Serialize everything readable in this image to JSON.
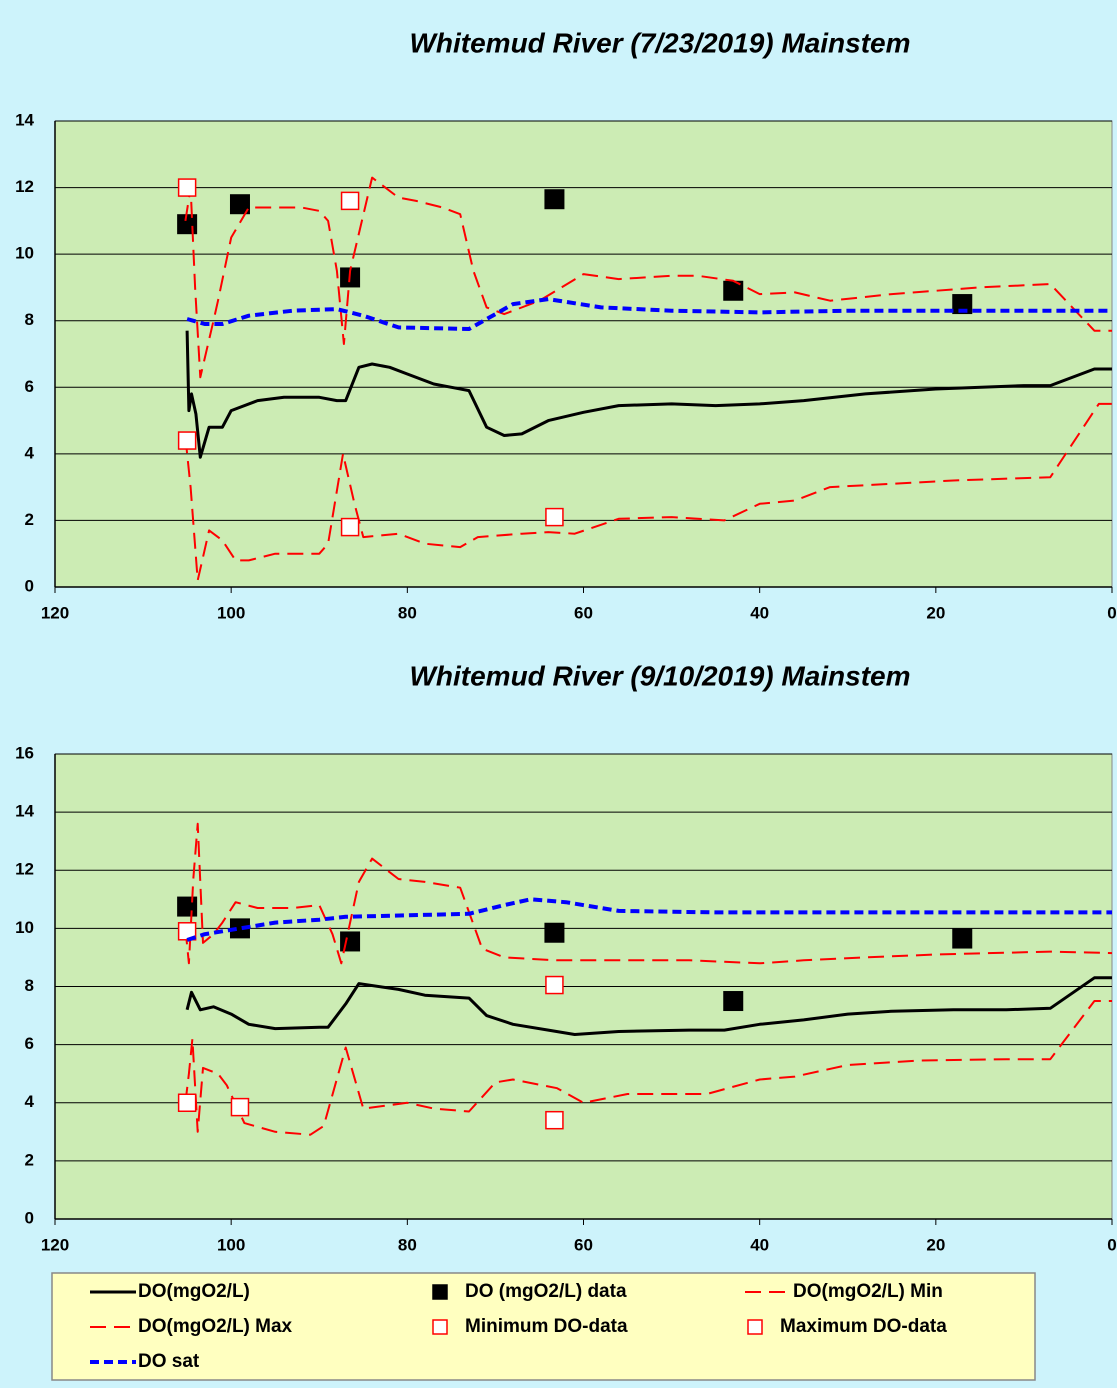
{
  "chart_data": [
    {
      "type": "line",
      "title": "Whitemud River (7/23/2019) Mainstem",
      "xlim": [
        120,
        0
      ],
      "xticks": [
        120,
        100,
        80,
        60,
        40,
        20,
        0
      ],
      "ylim": [
        0,
        14
      ],
      "yticks": [
        0,
        2,
        4,
        6,
        8,
        10,
        12,
        14
      ],
      "grid": true,
      "series": [
        {
          "color": "#000000",
          "style": "solid",
          "x": [
            105,
            104.8,
            104.5,
            104,
            103.5,
            102.5,
            101,
            100,
            97,
            94,
            90,
            88,
            87,
            85.5,
            84,
            82,
            80,
            77,
            75,
            73,
            71,
            69,
            67,
            64,
            60,
            56,
            50,
            45,
            40,
            35,
            28,
            20,
            10,
            7,
            2,
            0
          ],
          "values": [
            7.7,
            5.3,
            5.8,
            5.2,
            3.9,
            4.8,
            4.8,
            5.3,
            5.6,
            5.7,
            5.7,
            5.6,
            5.6,
            6.6,
            6.7,
            6.6,
            6.4,
            6.1,
            6.0,
            5.9,
            4.8,
            4.55,
            4.6,
            5.0,
            5.25,
            5.45,
            5.5,
            5.45,
            5.5,
            5.6,
            5.8,
            5.95,
            6.05,
            6.05,
            6.55,
            6.55
          ]
        },
        {
          "color": "#000000",
          "style": "square-filled",
          "x": [
            105,
            99,
            86.5,
            63.3,
            43,
            17
          ],
          "values": [
            10.9,
            11.5,
            9.3,
            11.65,
            8.9,
            8.5
          ]
        },
        {
          "color": "#ff0000",
          "style": "dashed",
          "x": [
            105.2,
            104.6,
            103.8,
            102.5,
            101,
            99.5,
            98,
            95,
            90,
            89,
            87.3,
            86,
            85,
            81,
            78,
            74,
            72,
            67,
            64,
            61,
            56,
            50,
            44,
            40,
            36,
            32,
            25,
            18,
            7,
            1.5,
            0
          ],
          "values": [
            4.5,
            3.0,
            0.2,
            1.7,
            1.4,
            0.8,
            0.8,
            1.0,
            1.0,
            1.3,
            4.0,
            2.5,
            1.5,
            1.6,
            1.3,
            1.2,
            1.5,
            1.6,
            1.65,
            1.6,
            2.05,
            2.1,
            2.0,
            2.5,
            2.6,
            3.0,
            3.1,
            3.2,
            3.3,
            5.5,
            5.5
          ]
        },
        {
          "color": "#ff0000",
          "style": "dashed",
          "x": [
            105.2,
            104.6,
            104.1,
            103.5,
            102,
            101.5,
            100,
            98,
            92,
            90,
            89,
            88,
            87.2,
            86.5,
            84,
            81,
            79,
            76,
            74,
            72.5,
            71,
            69,
            65,
            60,
            56,
            50,
            47,
            43,
            40,
            36,
            32,
            25,
            15,
            7,
            2,
            0
          ],
          "values": [
            11,
            12,
            9,
            6.3,
            8,
            8.6,
            10.5,
            11.4,
            11.4,
            11.3,
            11.0,
            9.5,
            7.3,
            9.5,
            12.3,
            11.7,
            11.6,
            11.4,
            11.2,
            9.5,
            8.4,
            8.2,
            8.6,
            9.4,
            9.25,
            9.35,
            9.35,
            9.2,
            8.8,
            8.85,
            8.6,
            8.8,
            9.0,
            9.1,
            7.7,
            7.7
          ]
        },
        {
          "color": "#ff0000",
          "style": "square-open",
          "x": [
            105,
            86.5,
            63.3
          ],
          "values": [
            4.4,
            1.8,
            2.1
          ]
        },
        {
          "color": "#ff0000",
          "style": "square-open",
          "x": [
            105,
            86.5
          ],
          "values": [
            12.0,
            11.6
          ]
        },
        {
          "color": "#0000ff",
          "style": "dotted",
          "x": [
            105,
            103,
            101,
            98,
            93,
            88,
            85,
            81,
            73,
            70,
            68,
            64,
            58,
            50,
            40,
            30,
            0
          ],
          "values": [
            8.05,
            7.9,
            7.9,
            8.15,
            8.3,
            8.35,
            8.15,
            7.8,
            7.75,
            8.2,
            8.5,
            8.65,
            8.4,
            8.3,
            8.25,
            8.3,
            8.3
          ]
        }
      ]
    },
    {
      "type": "line",
      "title": "Whitemud River (9/10/2019) Mainstem",
      "xlim": [
        120,
        0
      ],
      "xticks": [
        120,
        100,
        80,
        60,
        40,
        20,
        0
      ],
      "ylim": [
        0,
        16
      ],
      "yticks": [
        0,
        2,
        4,
        6,
        8,
        10,
        12,
        14,
        16
      ],
      "grid": true,
      "series": [
        {
          "name": "DO(mgO2/L)",
          "color": "#000000",
          "style": "solid",
          "x": [
            105,
            104.5,
            103.5,
            102,
            100,
            98,
            95,
            90,
            89,
            87,
            85.5,
            81,
            78,
            73,
            71,
            68,
            64,
            61,
            56,
            48,
            44,
            40,
            35,
            30,
            25,
            18,
            12,
            7,
            2,
            0
          ],
          "values": [
            7.2,
            7.8,
            7.2,
            7.3,
            7.05,
            6.7,
            6.55,
            6.6,
            6.6,
            7.4,
            8.1,
            7.9,
            7.7,
            7.6,
            7.0,
            6.7,
            6.5,
            6.35,
            6.45,
            6.5,
            6.5,
            6.7,
            6.85,
            7.05,
            7.15,
            7.2,
            7.2,
            7.25,
            8.3,
            8.3
          ]
        },
        {
          "name": "DO (mgO2/L) data",
          "color": "#000000",
          "style": "square-filled",
          "x": [
            105,
            99,
            86.5,
            63.3,
            43,
            17
          ],
          "values": [
            10.75,
            10.0,
            9.55,
            9.85,
            7.5,
            9.65
          ]
        },
        {
          "name": "DO(mgO2/L) Min",
          "color": "#ff0000",
          "style": "dashed",
          "x": [
            105.2,
            104.8,
            104.4,
            103.8,
            103.2,
            101.5,
            100.5,
            98.5,
            95,
            91,
            89.5,
            87,
            85,
            80,
            77,
            73,
            70,
            68,
            63,
            60,
            55,
            46,
            40,
            36,
            30,
            22,
            12,
            7,
            2,
            0
          ],
          "values": [
            4.0,
            5.0,
            6.2,
            3.0,
            5.2,
            5.0,
            4.6,
            3.3,
            3.0,
            2.9,
            3.2,
            5.9,
            3.8,
            4.0,
            3.8,
            3.7,
            4.7,
            4.8,
            4.5,
            4.0,
            4.3,
            4.3,
            4.8,
            4.9,
            5.3,
            5.45,
            5.5,
            5.5,
            7.5,
            7.5
          ]
        },
        {
          "name": "DO(mgO2/L) Max",
          "color": "#ff0000",
          "style": "dashed",
          "x": [
            105.2,
            104.8,
            104.3,
            103.8,
            103.2,
            102,
            101,
            99.5,
            97,
            93,
            90,
            88.5,
            87.5,
            85.5,
            84,
            81,
            78,
            74,
            71.5,
            69,
            63,
            56,
            48,
            40,
            35,
            28,
            20,
            7,
            0
          ],
          "values": [
            10.0,
            8.8,
            11.7,
            13.6,
            9.5,
            9.8,
            10.2,
            10.9,
            10.7,
            10.7,
            10.8,
            9.8,
            8.8,
            11.6,
            12.4,
            11.7,
            11.6,
            11.4,
            9.3,
            9.0,
            8.9,
            8.9,
            8.9,
            8.8,
            8.9,
            9.0,
            9.1,
            9.2,
            9.15
          ]
        },
        {
          "name": "Minimum DO-data",
          "color": "#ff0000",
          "style": "square-open",
          "x": [
            105,
            99,
            63.3
          ],
          "values": [
            4.0,
            3.85,
            3.4
          ]
        },
        {
          "name": "Maximum DO-data",
          "color": "#ff0000",
          "style": "square-open",
          "x": [
            105,
            63.3
          ],
          "values": [
            9.9,
            8.05
          ]
        },
        {
          "name": "DO sat",
          "color": "#0000ff",
          "style": "dotted",
          "x": [
            105,
            103,
            99,
            95,
            90,
            87,
            80,
            73,
            69,
            66,
            62,
            56,
            45,
            30,
            20,
            0
          ],
          "values": [
            9.6,
            9.8,
            10.0,
            10.2,
            10.3,
            10.4,
            10.45,
            10.5,
            10.8,
            11.0,
            10.9,
            10.6,
            10.55,
            10.55,
            10.55,
            10.55
          ]
        }
      ]
    }
  ]
}
